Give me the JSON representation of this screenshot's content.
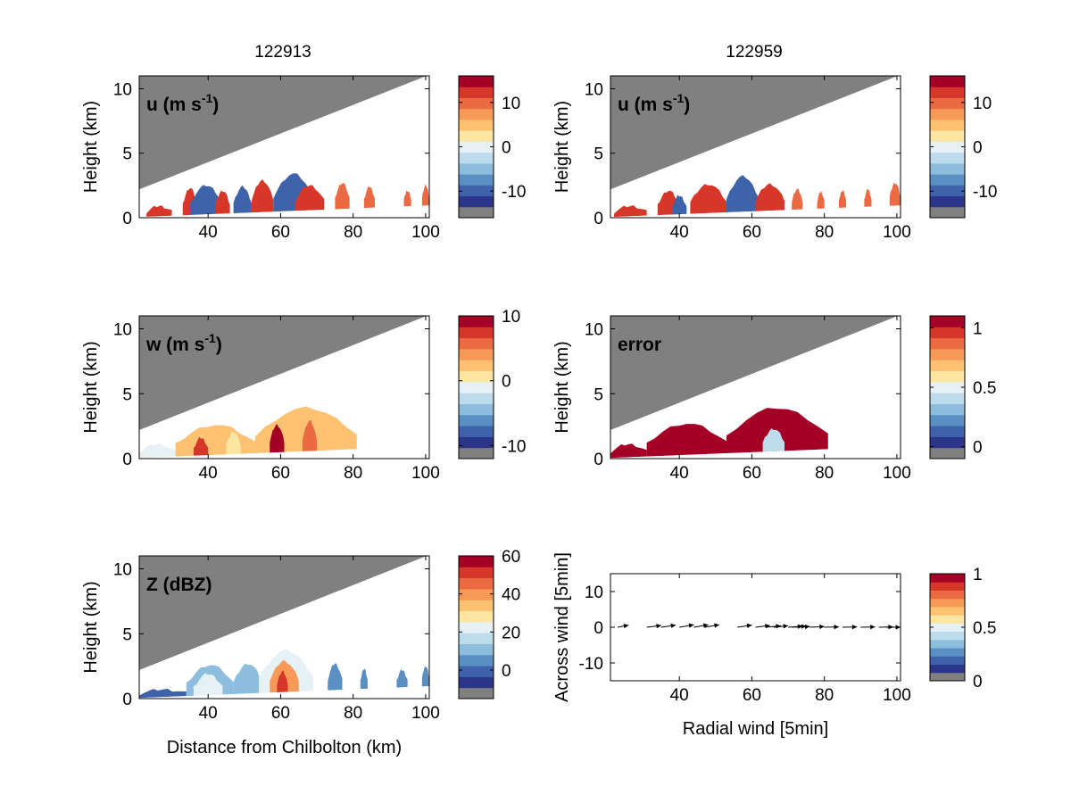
{
  "figure": {
    "column_titles": [
      "122913",
      "122959"
    ]
  },
  "chart_data": [
    {
      "id": "u_left",
      "type": "heatmap",
      "title": "122913",
      "panel_label": "u (m s",
      "panel_label_sup": "-1",
      "panel_label_end": ")",
      "xlabel": "",
      "ylabel": "Height (km)",
      "xlim": [
        21,
        101
      ],
      "ylim": [
        0,
        11
      ],
      "xticks": [
        40,
        60,
        80,
        100
      ],
      "yticks": [
        0,
        5,
        10
      ],
      "colorbar": {
        "range": [
          -16,
          16
        ],
        "ticks": [
          10,
          0,
          -10
        ],
        "tick_values": [
          10,
          0,
          -10
        ]
      },
      "echo_regions": [
        {
          "x0": 23,
          "x1": 30,
          "top": 0.8,
          "value": 12
        },
        {
          "x0": 33,
          "x1": 37,
          "top": 2.2,
          "value": 13
        },
        {
          "x0": 35,
          "x1": 44,
          "top": 2.4,
          "value": -13
        },
        {
          "x0": 42,
          "x1": 46,
          "top": 2.0,
          "value": 13
        },
        {
          "x0": 47,
          "x1": 52,
          "top": 2.3,
          "value": -12
        },
        {
          "x0": 52,
          "x1": 58,
          "top": 2.8,
          "value": 13
        },
        {
          "x0": 58,
          "x1": 69,
          "top": 3.3,
          "value": -13
        },
        {
          "x0": 64,
          "x1": 72,
          "top": 2.4,
          "value": 13
        },
        {
          "x0": 75,
          "x1": 79,
          "top": 2.6,
          "value": 10
        },
        {
          "x0": 83,
          "x1": 86,
          "top": 2.3,
          "value": 10
        },
        {
          "x0": 94,
          "x1": 96,
          "top": 2.0,
          "value": 10
        },
        {
          "x0": 99,
          "x1": 101,
          "top": 2.4,
          "value": 10
        }
      ]
    },
    {
      "id": "u_right",
      "type": "heatmap",
      "title": "122959",
      "panel_label": "u (m s",
      "panel_label_sup": "-1",
      "panel_label_end": ")",
      "xlabel": "",
      "ylabel": "Height (km)",
      "xlim": [
        21,
        101
      ],
      "ylim": [
        0,
        11
      ],
      "xticks": [
        40,
        60,
        80,
        100
      ],
      "yticks": [
        0,
        5,
        10
      ],
      "colorbar": {
        "range": [
          -16,
          16
        ],
        "ticks": [
          10,
          0,
          -10
        ],
        "tick_values": [
          10,
          0,
          -10
        ]
      },
      "echo_regions": [
        {
          "x0": 22,
          "x1": 31,
          "top": 0.8,
          "value": 12
        },
        {
          "x0": 34,
          "x1": 40,
          "top": 2.0,
          "value": 13
        },
        {
          "x0": 38,
          "x1": 42,
          "top": 1.6,
          "value": -12
        },
        {
          "x0": 43,
          "x1": 53,
          "top": 2.5,
          "value": 13
        },
        {
          "x0": 53,
          "x1": 62,
          "top": 3.1,
          "value": -13
        },
        {
          "x0": 61,
          "x1": 69,
          "top": 2.5,
          "value": 13
        },
        {
          "x0": 71,
          "x1": 74,
          "top": 2.1,
          "value": 10
        },
        {
          "x0": 78,
          "x1": 80,
          "top": 1.9,
          "value": 10
        },
        {
          "x0": 84,
          "x1": 86,
          "top": 2.0,
          "value": 10
        },
        {
          "x0": 91,
          "x1": 93,
          "top": 2.1,
          "value": 10
        },
        {
          "x0": 98,
          "x1": 101,
          "top": 2.6,
          "value": 10
        }
      ]
    },
    {
      "id": "w_left",
      "type": "heatmap",
      "title": "",
      "panel_label": "w (m s",
      "panel_label_sup": "-1",
      "panel_label_end": ")",
      "xlabel": "",
      "ylabel": "Height (km)",
      "xlim": [
        21,
        101
      ],
      "ylim": [
        0,
        11
      ],
      "xticks": [
        40,
        60,
        80,
        100
      ],
      "yticks": [
        0,
        5,
        10
      ],
      "colorbar": {
        "range": [
          -12,
          10
        ],
        "ticks": [
          10,
          0,
          -10
        ],
        "tick_values": [
          10,
          0,
          -10
        ]
      },
      "echo_regions": [
        {
          "x0": 21,
          "x1": 31,
          "top": 1.0,
          "value": -2
        },
        {
          "x0": 31,
          "x1": 53,
          "top": 2.5,
          "value": 2
        },
        {
          "x0": 36,
          "x1": 40,
          "top": 1.5,
          "value": 7
        },
        {
          "x0": 45,
          "x1": 49,
          "top": 2.0,
          "value": -1
        },
        {
          "x0": 53,
          "x1": 81,
          "top": 3.8,
          "value": 2
        },
        {
          "x0": 57,
          "x1": 61,
          "top": 2.5,
          "value": 9
        },
        {
          "x0": 66,
          "x1": 70,
          "top": 2.8,
          "value": 5
        }
      ]
    },
    {
      "id": "error_right",
      "type": "heatmap",
      "title": "",
      "panel_label": "error",
      "panel_label_sup": "",
      "panel_label_end": "",
      "xlabel": "",
      "ylabel": "Height (km)",
      "xlim": [
        21,
        101
      ],
      "ylim": [
        0,
        11
      ],
      "xticks": [
        40,
        60,
        80,
        100
      ],
      "yticks": [
        0,
        5,
        10
      ],
      "colorbar": {
        "range": [
          -0.1,
          1.1
        ],
        "ticks": [
          1,
          0.5,
          0
        ],
        "tick_values": [
          1,
          0.5,
          0
        ]
      },
      "echo_regions": [
        {
          "x0": 21,
          "x1": 31,
          "top": 1.0,
          "value": 1
        },
        {
          "x0": 31,
          "x1": 53,
          "top": 2.6,
          "value": 1
        },
        {
          "x0": 53,
          "x1": 81,
          "top": 3.8,
          "value": 1
        },
        {
          "x0": 63,
          "x1": 69,
          "top": 2.2,
          "value": 0.3
        }
      ]
    },
    {
      "id": "z_left",
      "type": "heatmap",
      "title": "",
      "panel_label": "Z (dBZ)",
      "panel_label_sup": "",
      "panel_label_end": "",
      "xlabel": "Distance from Chilbolton (km)",
      "ylabel": "Height (km)",
      "xlim": [
        21,
        101
      ],
      "ylim": [
        0,
        11
      ],
      "xticks": [
        40,
        60,
        80,
        100
      ],
      "yticks": [
        0,
        5,
        10
      ],
      "colorbar": {
        "range": [
          -15,
          60
        ],
        "ticks": [
          60,
          40,
          20,
          0
        ],
        "tick_values": [
          60,
          40,
          20,
          0
        ]
      },
      "echo_regions": [
        {
          "x0": 21,
          "x1": 34,
          "top": 0.6,
          "value": -8
        },
        {
          "x0": 34,
          "x1": 47,
          "top": 2.5,
          "value": 8
        },
        {
          "x0": 36,
          "x1": 44,
          "top": 1.8,
          "value": 18
        },
        {
          "x0": 47,
          "x1": 55,
          "top": 2.6,
          "value": 5
        },
        {
          "x0": 54,
          "x1": 69,
          "top": 3.6,
          "value": 22
        },
        {
          "x0": 57,
          "x1": 65,
          "top": 2.8,
          "value": 38
        },
        {
          "x0": 59,
          "x1": 62,
          "top": 2.0,
          "value": 50
        },
        {
          "x0": 73,
          "x1": 77,
          "top": 2.6,
          "value": 2
        },
        {
          "x0": 82,
          "x1": 84,
          "top": 2.2,
          "value": 0
        },
        {
          "x0": 92,
          "x1": 95,
          "top": 2.1,
          "value": 0
        },
        {
          "x0": 99,
          "x1": 101,
          "top": 2.4,
          "value": 0
        }
      ]
    },
    {
      "id": "wind_right",
      "type": "scatter",
      "title": "",
      "panel_label": "",
      "panel_label_sup": "",
      "panel_label_end": "",
      "xlabel": "Radial wind [5min]",
      "ylabel": "Across wind [5min]",
      "xlim": [
        21,
        101
      ],
      "ylim": [
        -15,
        15
      ],
      "xticks": [
        40,
        60,
        80,
        100
      ],
      "yticks": [
        10,
        0,
        -10
      ],
      "colorbar": {
        "range": [
          0,
          1
        ],
        "ticks": [
          1,
          0.5,
          0
        ],
        "tick_values": [
          1,
          0.5,
          0
        ]
      },
      "arrows": [
        {
          "x": 23,
          "y": 0,
          "dx": 3,
          "dy": 0.6
        },
        {
          "x": 31,
          "y": 0,
          "dx": 4,
          "dy": 0.5
        },
        {
          "x": 35,
          "y": 0,
          "dx": 4,
          "dy": 0.6
        },
        {
          "x": 40,
          "y": 0,
          "dx": 4,
          "dy": 0.7
        },
        {
          "x": 44,
          "y": 0,
          "dx": 4,
          "dy": 0.7
        },
        {
          "x": 47,
          "y": 0,
          "dx": 4,
          "dy": 0.7
        },
        {
          "x": 56,
          "y": 0,
          "dx": 4,
          "dy": 0.6
        },
        {
          "x": 61,
          "y": 0,
          "dx": 4,
          "dy": 0.5
        },
        {
          "x": 64,
          "y": 0,
          "dx": 4,
          "dy": 0.4
        },
        {
          "x": 66,
          "y": 0,
          "dx": 4,
          "dy": 0.4
        },
        {
          "x": 70,
          "y": 0,
          "dx": 4,
          "dy": 0.3
        },
        {
          "x": 71,
          "y": 0,
          "dx": 4,
          "dy": 0.3
        },
        {
          "x": 72,
          "y": 0,
          "dx": 4,
          "dy": 0.2
        },
        {
          "x": 76,
          "y": 0,
          "dx": 4,
          "dy": 0.2
        },
        {
          "x": 80,
          "y": 0,
          "dx": 4,
          "dy": 0.1
        },
        {
          "x": 85,
          "y": 0,
          "dx": 4,
          "dy": 0.1
        },
        {
          "x": 90,
          "y": 0,
          "dx": 4,
          "dy": 0.1
        },
        {
          "x": 95,
          "y": 0,
          "dx": 4,
          "dy": 0.1
        },
        {
          "x": 97,
          "y": 0,
          "dx": 4,
          "dy": 0.0
        }
      ]
    }
  ],
  "colors": {
    "colormap": [
      "#808080",
      "#2b3589",
      "#3e63aa",
      "#5a8fc4",
      "#8ebede",
      "#bcdcec",
      "#e6f1f6",
      "#fde6a1",
      "#fcc272",
      "#f79a58",
      "#ec6a41",
      "#d63729",
      "#a50026"
    ],
    "beam_blocked": "#808080",
    "axis": "#000000",
    "background": "#ffffff"
  }
}
